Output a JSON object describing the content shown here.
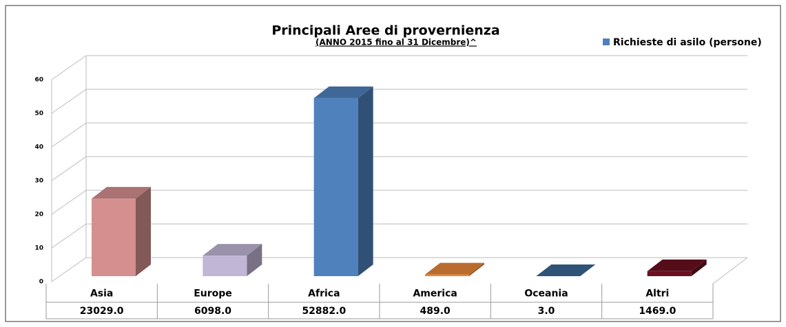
{
  "chart_data": {
    "type": "bar3d",
    "title": "Principali Aree di provernienza",
    "subtitle": "(ANNO 2015 fino al  31  Dicembre)^",
    "categories": [
      "Asia",
      "Europe",
      "Africa",
      "America",
      "Oceania",
      "Altri"
    ],
    "series": [
      {
        "name": "Richieste di asilo (persone)",
        "color": "#4f81bd",
        "values": [
          23.029,
          6.098,
          52.882,
          0.489,
          0.003,
          1.469
        ],
        "value_labels": [
          "23029.0",
          "6098.0",
          "52882.0",
          "489.0",
          "3.0",
          "1469.0"
        ]
      }
    ],
    "colors": [
      "#d48f8e",
      "#c1b6d6",
      "#4f81bd",
      "#e8873a",
      "#3a6894",
      "#6b1020"
    ],
    "ylim": [
      0,
      60
    ],
    "yticks": [
      0,
      10,
      20,
      30,
      40,
      50,
      60
    ],
    "grid": true,
    "legend": "top-right"
  }
}
